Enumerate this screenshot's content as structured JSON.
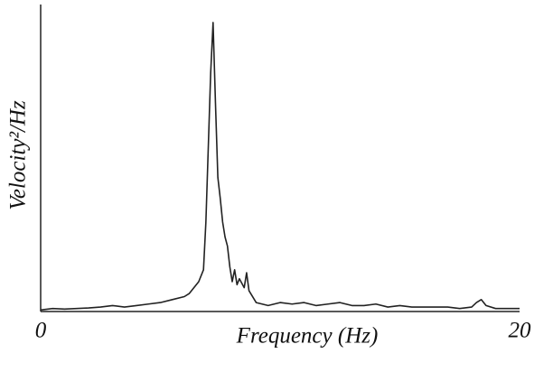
{
  "chart_data": {
    "type": "line",
    "x_label": "Frequency (Hz)",
    "y_label": "Velocity²/Hz",
    "x": [
      0,
      0.5,
      1,
      1.5,
      2,
      2.5,
      3,
      3.5,
      4,
      4.5,
      5,
      5.5,
      6,
      6.2,
      6.4,
      6.6,
      6.8,
      6.9,
      7.0,
      7.1,
      7.2,
      7.3,
      7.4,
      7.5,
      7.6,
      7.7,
      7.8,
      7.9,
      8.0,
      8.1,
      8.2,
      8.3,
      8.5,
      8.6,
      8.7,
      9,
      9.5,
      10,
      10.5,
      11,
      11.5,
      12,
      12.5,
      13,
      13.5,
      14,
      14.5,
      15,
      15.5,
      16,
      16.5,
      17,
      17.5,
      18,
      18.2,
      18.4,
      18.6,
      19,
      19.5,
      20
    ],
    "values": [
      0.5,
      1,
      0.8,
      1,
      1.2,
      1.5,
      2,
      1.5,
      2,
      2.5,
      3,
      4,
      5,
      6,
      8,
      10,
      14,
      30,
      55,
      80,
      97,
      70,
      45,
      38,
      30,
      25,
      22,
      15,
      10,
      14,
      9,
      11,
      8,
      13,
      7,
      3,
      2,
      3,
      2.5,
      3,
      2,
      2.5,
      3,
      2,
      2,
      2.5,
      1.5,
      2,
      1.5,
      1.5,
      1.5,
      1.5,
      1,
      1.5,
      3,
      4,
      2,
      1,
      1,
      1
    ],
    "color": "#222222",
    "xlim": [
      0,
      20
    ],
    "ylim": [
      0,
      100
    ],
    "xticks": [
      0,
      20
    ]
  }
}
